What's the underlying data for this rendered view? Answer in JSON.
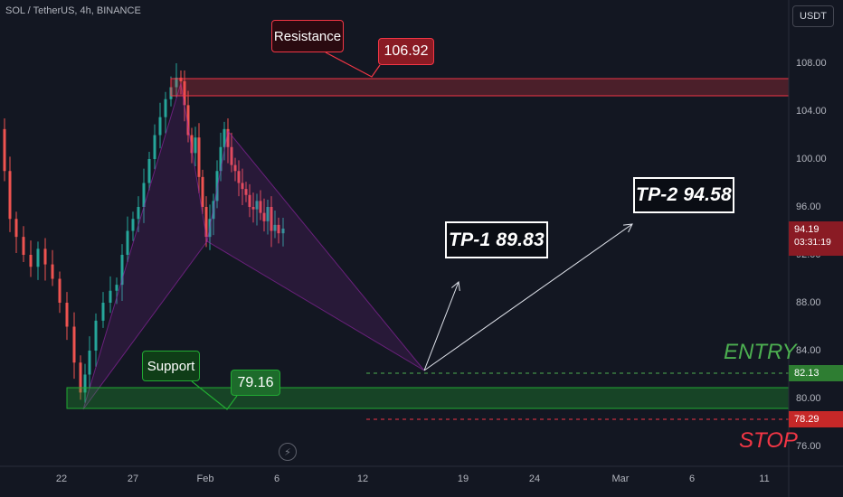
{
  "header": {
    "symbol_info": "SOL / TetherUS, 4h, BINANCE",
    "currency_button": "USDT"
  },
  "y_axis_labels": [
    "108.00",
    "104.00",
    "100.00",
    "96.00",
    "92.00",
    "88.00",
    "84.00",
    "80.00",
    "76.00"
  ],
  "x_axis_labels": [
    "22",
    "27",
    "Feb",
    "6",
    "12",
    "19",
    "24",
    "Mar",
    "6",
    "11"
  ],
  "price_tags": {
    "current": {
      "value": "94.19",
      "countdown": "03:31:19",
      "color": "#8a1b24"
    },
    "entry": {
      "value": "82.13",
      "color": "#2e7d32"
    },
    "stop": {
      "value": "78.29",
      "color": "#c62828"
    }
  },
  "annotations": {
    "resistance_label": "Resistance",
    "resistance_value": "106.92",
    "support_label": "Support",
    "support_value": "79.16",
    "tp1": "TP-1 89.83",
    "tp2": "TP-2 94.58",
    "entry_label": "ENTRY",
    "stop_label": "STOP"
  },
  "colors": {
    "background": "#131722",
    "up_candle": "#26a69a",
    "down_candle": "#ef5350",
    "resistance_zone": "#f23645",
    "support_zone": "#22ab33",
    "pattern": "#9c27b0"
  },
  "icons": {
    "flash": "lightning-icon"
  }
}
